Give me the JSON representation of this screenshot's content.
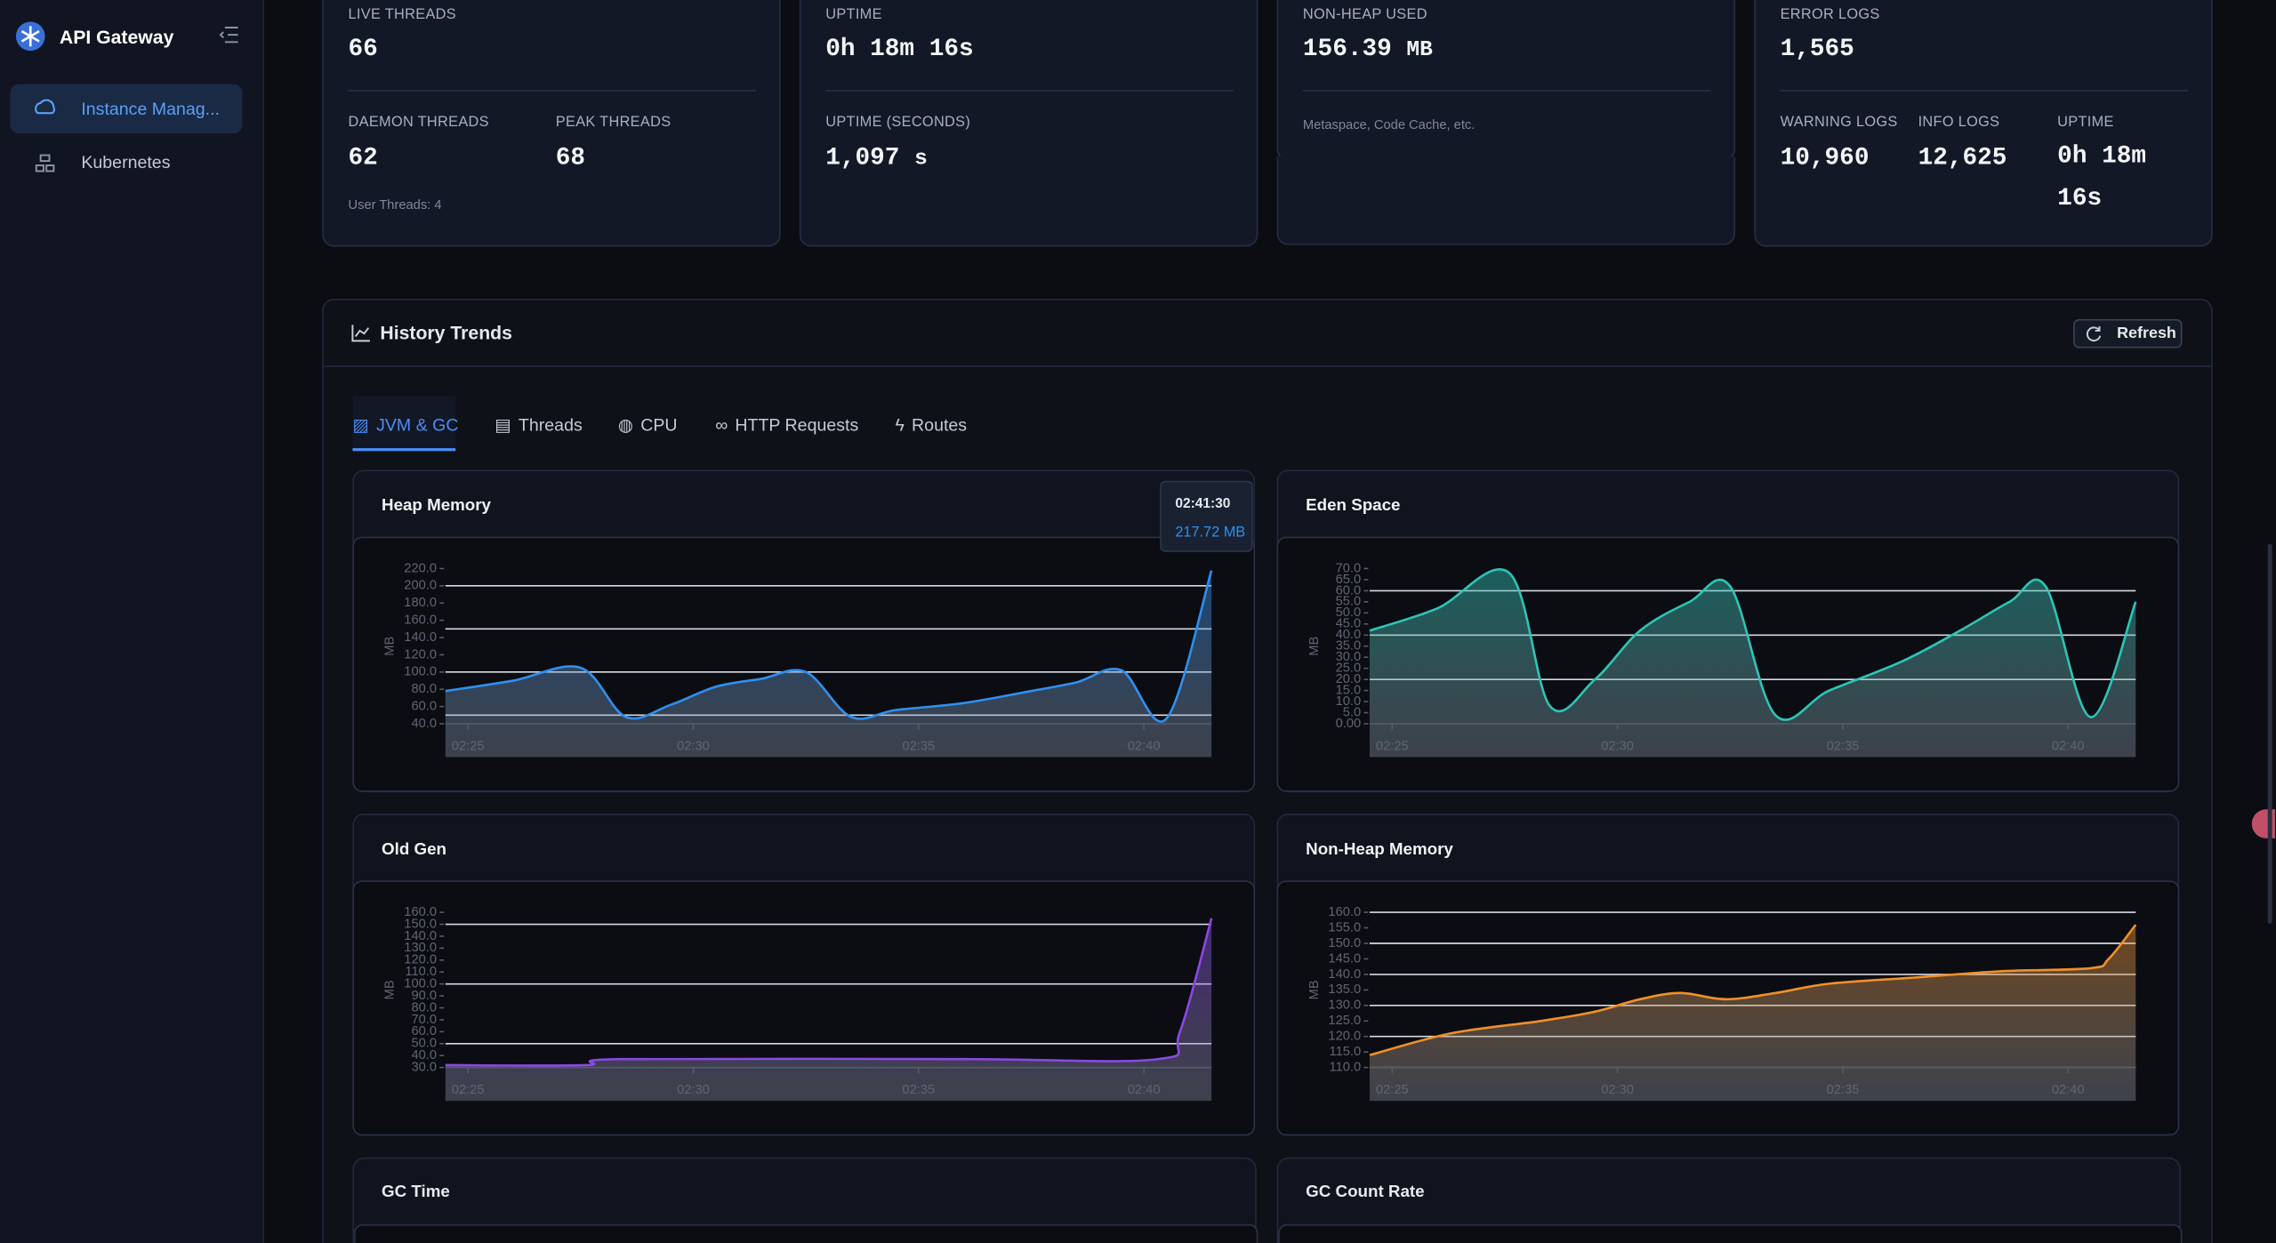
{
  "sidebar": {
    "brand": "API Gateway",
    "items": [
      "Instance Manag...",
      "Kubernetes"
    ]
  },
  "stats": [
    {
      "label": "LIVE THREADS",
      "value": "66",
      "items": [
        {
          "label": "DAEMON THREADS",
          "value": "62"
        },
        {
          "label": "PEAK THREADS",
          "value": "68"
        }
      ],
      "note": "User Threads: 4"
    },
    {
      "label": "UPTIME",
      "value": "0h 18m 16s",
      "items": [
        {
          "label": "UPTIME (SECONDS)",
          "value": "1,097",
          "unit": "s"
        }
      ]
    },
    {
      "label": "NON-HEAP USED",
      "value": "156.39",
      "unit": "MB",
      "note": "Metaspace, Code Cache, etc."
    },
    {
      "label": "ERROR LOGS",
      "value": "1,565",
      "items": [
        {
          "label": "WARNING LOGS",
          "value": "10,960"
        },
        {
          "label": "INFO LOGS",
          "value": "12,625"
        },
        {
          "label": "UPTIME",
          "value": "0h 18m 16s"
        }
      ]
    }
  ],
  "history": {
    "title": "History Trends",
    "refresh": "Refresh",
    "tabs": [
      "JVM & GC",
      "Threads",
      "CPU",
      "HTTP Requests",
      "Routes"
    ]
  },
  "chart_data": [
    {
      "type": "area",
      "title": "Heap Memory",
      "y_label": "MB",
      "color": "#2f8ff0",
      "x": [
        144.5,
        146,
        147.5,
        148.5,
        149.5,
        150.5,
        151.5,
        152.5,
        153.5,
        154.5,
        156,
        157.5,
        158.5,
        159.5,
        160.5,
        161.5
      ],
      "values": [
        78,
        90,
        105,
        48,
        62,
        83,
        92,
        100,
        48,
        56,
        64,
        78,
        88,
        102,
        46,
        217.72
      ],
      "xlim": [
        144.5,
        161.5
      ],
      "xticks": [
        {
          "value": 145,
          "label": "02:25"
        },
        {
          "value": 150,
          "label": "02:30"
        },
        {
          "value": 155,
          "label": "02:35"
        },
        {
          "value": 160,
          "label": "02:40"
        }
      ],
      "ylim": [
        40,
        220
      ],
      "yticks": [
        {
          "value": 220,
          "label": "220.0"
        },
        {
          "value": 200,
          "label": "200.0"
        },
        {
          "value": 180,
          "label": "180.0"
        },
        {
          "value": 160,
          "label": "160.0"
        },
        {
          "value": 140,
          "label": "140.0"
        },
        {
          "value": 120,
          "label": "120.0"
        },
        {
          "value": 100,
          "label": "100.0"
        },
        {
          "value": 80,
          "label": "80.0"
        },
        {
          "value": 60,
          "label": "60.0"
        },
        {
          "value": 40,
          "label": "40.0"
        }
      ],
      "grid_lines": [
        200,
        150,
        100,
        50
      ],
      "tooltip": {
        "time": "02:41:30",
        "text": "217.72 MB"
      }
    },
    {
      "type": "area",
      "title": "Eden Space",
      "y_label": "MB",
      "color": "#2ec4b6",
      "x": [
        144.5,
        146,
        147.6,
        148.5,
        149.5,
        150.5,
        151.6,
        152.5,
        153.5,
        154.7,
        156.3,
        157.6,
        158.7,
        159.5,
        160.5,
        161.5
      ],
      "values": [
        42,
        52,
        68,
        8,
        20,
        42,
        55,
        62,
        4,
        15,
        28,
        42,
        55,
        62,
        3,
        55
      ],
      "xlim": [
        144.5,
        161.5
      ],
      "xticks": [
        {
          "value": 145,
          "label": "02:25"
        },
        {
          "value": 150,
          "label": "02:30"
        },
        {
          "value": 155,
          "label": "02:35"
        },
        {
          "value": 160,
          "label": "02:40"
        }
      ],
      "ylim": [
        0,
        70
      ],
      "yticks": [
        {
          "value": 70,
          "label": "70.0"
        },
        {
          "value": 65,
          "label": "65.0"
        },
        {
          "value": 60,
          "label": "60.0"
        },
        {
          "value": 55,
          "label": "55.0"
        },
        {
          "value": 50,
          "label": "50.0"
        },
        {
          "value": 45,
          "label": "45.0"
        },
        {
          "value": 40,
          "label": "40.0"
        },
        {
          "value": 35,
          "label": "35.0"
        },
        {
          "value": 30,
          "label": "30.0"
        },
        {
          "value": 25,
          "label": "25.0"
        },
        {
          "value": 20,
          "label": "20.0"
        },
        {
          "value": 15,
          "label": "15.0"
        },
        {
          "value": 10,
          "label": "10.0"
        },
        {
          "value": 5,
          "label": "5.0"
        },
        {
          "value": 0,
          "label": "0.00"
        }
      ],
      "grid_lines": [
        60,
        40,
        20
      ]
    },
    {
      "type": "area",
      "title": "Old Gen",
      "y_label": "MB",
      "color": "#8b47e6",
      "x": [
        144.5,
        147.6,
        148.4,
        156,
        160.3,
        160.8,
        161.5
      ],
      "values": [
        32,
        32,
        37,
        37,
        37,
        60,
        155
      ],
      "xlim": [
        144.5,
        161.5
      ],
      "xticks": [
        {
          "value": 145,
          "label": "02:25"
        },
        {
          "value": 150,
          "label": "02:30"
        },
        {
          "value": 155,
          "label": "02:35"
        },
        {
          "value": 160,
          "label": "02:40"
        }
      ],
      "ylim": [
        30,
        160
      ],
      "yticks": [
        {
          "value": 160,
          "label": "160.0"
        },
        {
          "value": 150,
          "label": "150.0"
        },
        {
          "value": 140,
          "label": "140.0"
        },
        {
          "value": 130,
          "label": "130.0"
        },
        {
          "value": 120,
          "label": "120.0"
        },
        {
          "value": 110,
          "label": "110.0"
        },
        {
          "value": 100,
          "label": "100.0"
        },
        {
          "value": 90,
          "label": "90.0"
        },
        {
          "value": 80,
          "label": "80.0"
        },
        {
          "value": 70,
          "label": "70.0"
        },
        {
          "value": 60,
          "label": "60.0"
        },
        {
          "value": 50,
          "label": "50.0"
        },
        {
          "value": 40,
          "label": "40.0"
        },
        {
          "value": 30,
          "label": "30.0"
        }
      ],
      "grid_lines": [
        150,
        100,
        50
      ]
    },
    {
      "type": "area",
      "title": "Non-Heap Memory",
      "y_label": "MB",
      "color": "#f0902a",
      "x": [
        144.5,
        146.3,
        148.3,
        149.5,
        150.5,
        151.4,
        152.4,
        153.5,
        154.7,
        156.6,
        158.5,
        160.5,
        160.9,
        161.5
      ],
      "values": [
        114,
        121,
        125,
        128,
        132,
        134,
        132,
        134,
        137,
        139,
        141,
        142,
        145,
        156
      ],
      "xlim": [
        144.5,
        161.5
      ],
      "xticks": [
        {
          "value": 145,
          "label": "02:25"
        },
        {
          "value": 150,
          "label": "02:30"
        },
        {
          "value": 155,
          "label": "02:35"
        },
        {
          "value": 160,
          "label": "02:40"
        }
      ],
      "ylim": [
        110,
        160
      ],
      "yticks": [
        {
          "value": 160,
          "label": "160.0"
        },
        {
          "value": 155,
          "label": "155.0"
        },
        {
          "value": 150,
          "label": "150.0"
        },
        {
          "value": 145,
          "label": "145.0"
        },
        {
          "value": 140,
          "label": "140.0"
        },
        {
          "value": 135,
          "label": "135.0"
        },
        {
          "value": 130,
          "label": "130.0"
        },
        {
          "value": 125,
          "label": "125.0"
        },
        {
          "value": 120,
          "label": "120.0"
        },
        {
          "value": 115,
          "label": "115.0"
        },
        {
          "value": 110,
          "label": "110.0"
        }
      ],
      "grid_lines": [
        160,
        150,
        140,
        130,
        120,
        110
      ]
    }
  ],
  "pending_panels": [
    "GC Time",
    "GC Count Rate"
  ]
}
